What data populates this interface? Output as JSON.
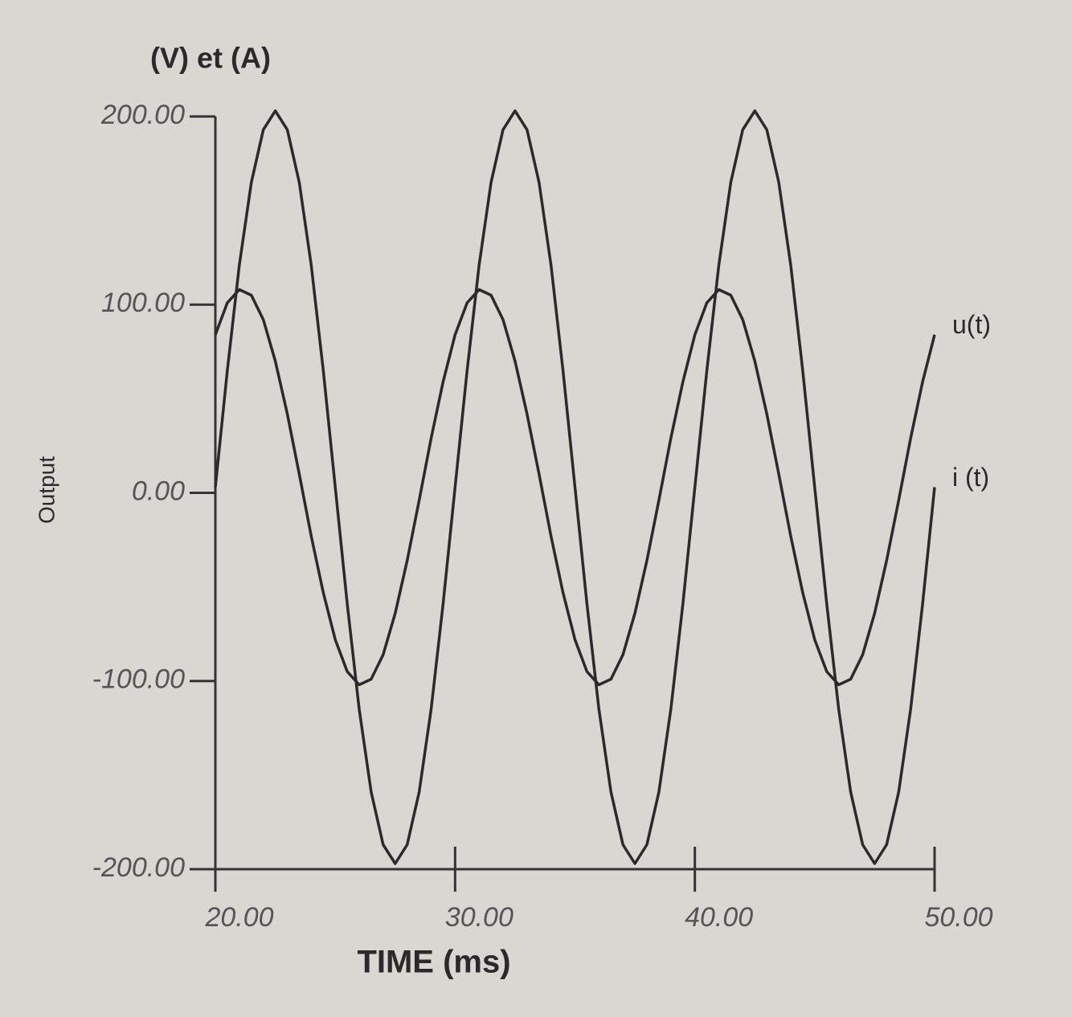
{
  "chart_data": {
    "type": "line",
    "y_axis_title": "(V) et (A)",
    "y_label": "Output",
    "x_label": "TIME (ms)",
    "x": [
      20,
      20.5,
      21,
      21.5,
      22,
      22.5,
      23,
      23.5,
      24,
      24.5,
      25,
      25.5,
      26,
      26.5,
      27,
      27.5,
      28,
      28.5,
      29,
      29.5,
      30,
      30.5,
      31,
      31.5,
      32,
      32.5,
      33,
      33.5,
      34,
      34.5,
      35,
      35.5,
      36,
      36.5,
      37,
      37.5,
      38,
      38.5,
      39,
      39.5,
      40,
      40.5,
      41,
      41.5,
      42,
      42.5,
      43,
      43.5,
      44,
      44.5,
      45,
      45.5,
      46,
      46.5,
      47,
      47.5,
      48,
      48.5,
      49,
      49.5,
      50
    ],
    "series": [
      {
        "name": "u(t)",
        "color": "#2a2a2a",
        "values": [
          84,
          101,
          108,
          105,
          92,
          70,
          42,
          10,
          -23,
          -53,
          -78,
          -95,
          -102,
          -99,
          -86,
          -64,
          -36,
          -4,
          29,
          59,
          84,
          101,
          108,
          105,
          92,
          70,
          42,
          10,
          -23,
          -53,
          -78,
          -95,
          -102,
          -99,
          -86,
          -64,
          -36,
          -4,
          29,
          59,
          84,
          101,
          108,
          105,
          92,
          70,
          42,
          10,
          -23,
          -53,
          -78,
          -95,
          -102,
          -99,
          -86,
          -64,
          -36,
          -4,
          29,
          59,
          84
        ]
      },
      {
        "name": "i (t)",
        "color": "#2a2a2a",
        "values": [
          3,
          65,
          121,
          165,
          193,
          203,
          193,
          165,
          121,
          65,
          3,
          -59,
          -115,
          -159,
          -187,
          -197,
          -187,
          -159,
          -115,
          -59,
          3,
          65,
          121,
          165,
          193,
          203,
          193,
          165,
          121,
          65,
          3,
          -59,
          -115,
          -159,
          -187,
          -197,
          -187,
          -159,
          -115,
          -59,
          3,
          65,
          121,
          165,
          193,
          203,
          193,
          165,
          121,
          65,
          3,
          -59,
          -115,
          -159,
          -187,
          -197,
          -187,
          -159,
          -115,
          -59,
          3
        ]
      }
    ],
    "xlim": [
      20,
      50
    ],
    "xticks": [
      {
        "value": 20,
        "label": "20.00"
      },
      {
        "value": 30,
        "label": "30.00"
      },
      {
        "value": 40,
        "label": "40.00"
      },
      {
        "value": 50,
        "label": "50.00"
      }
    ],
    "ylim": [
      -200,
      200
    ],
    "yticks": [
      {
        "value": -200,
        "label": "-200.00"
      },
      {
        "value": -100,
        "label": "-100.00"
      },
      {
        "value": 0,
        "label": "0.00"
      },
      {
        "value": 100,
        "label": "100.00"
      },
      {
        "value": 200,
        "label": "200.00"
      }
    ],
    "grid": false
  }
}
